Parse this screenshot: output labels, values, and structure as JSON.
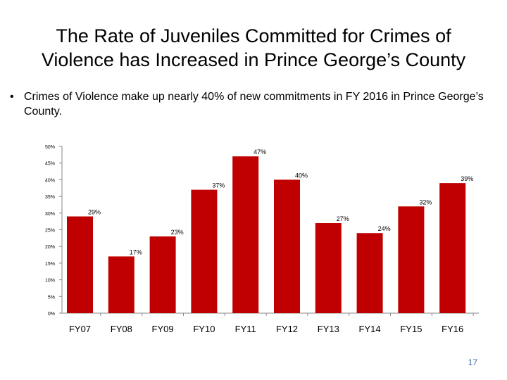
{
  "slide": {
    "title_line1": "The Rate of Juveniles Committed for Crimes of",
    "title_line2": "Violence has Increased in Prince George’s County",
    "bullet": "Crimes of Violence make up nearly 40% of new commitments in FY 2016 in Prince George’s County.",
    "page_number": "17"
  },
  "chart_data": {
    "type": "bar",
    "categories": [
      "FY07",
      "FY08",
      "FY09",
      "FY10",
      "FY11",
      "FY12",
      "FY13",
      "FY14",
      "FY15",
      "FY16"
    ],
    "values": [
      29,
      17,
      23,
      37,
      47,
      40,
      27,
      24,
      32,
      39
    ],
    "data_labels": [
      "29%",
      "17%",
      "23%",
      "37%",
      "47%",
      "40%",
      "27%",
      "24%",
      "32%",
      "39%"
    ],
    "yticks": [
      0,
      5,
      10,
      15,
      20,
      25,
      30,
      35,
      40,
      45,
      50
    ],
    "ytick_labels": [
      "0%",
      "5%",
      "10%",
      "15%",
      "20%",
      "25%",
      "30%",
      "35%",
      "40%",
      "45%",
      "50%"
    ],
    "ylim": [
      0,
      50
    ],
    "grid": false,
    "bar_color": "#c00000"
  }
}
